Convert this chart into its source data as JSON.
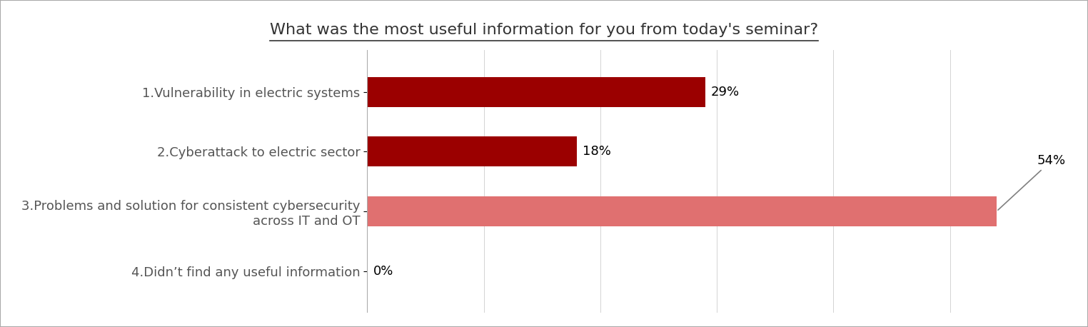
{
  "title": "What was the most useful information for you from today's seminar?",
  "categories": [
    "1.Vulnerability in electric systems",
    "2.Cyberattack to electric sector",
    "3.Problems and solution for consistent cybersecurity\nacross IT and OT",
    "4.Didn’t find any useful information"
  ],
  "values": [
    29,
    18,
    54,
    0
  ],
  "bar_colors": [
    "#9B0000",
    "#9B0000",
    "#E07070",
    "#E07070"
  ],
  "bar_labels": [
    "29%",
    "18%",
    "54%",
    "0%"
  ],
  "xlim": [
    0,
    60
  ],
  "background_color": "#ffffff",
  "title_fontsize": 16,
  "label_fontsize": 13,
  "bar_label_fontsize": 13,
  "figsize": [
    15.24,
    4.58
  ],
  "dpi": 100
}
